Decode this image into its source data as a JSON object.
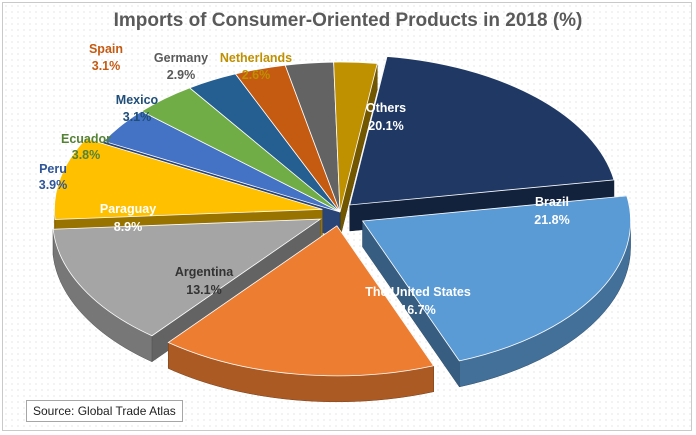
{
  "chart_data": {
    "type": "pie",
    "title": "Imports of Consumer-Oriented  Products  in 2018 (%)",
    "unit": "%",
    "slices": [
      {
        "label": "Others",
        "value": 20.1,
        "display": "20.1%",
        "color": "#1f3864",
        "label_color": "#ffffff"
      },
      {
        "label": "Brazil",
        "value": 21.8,
        "display": "21.8%",
        "color": "#5b9bd5",
        "label_color": "#ffffff"
      },
      {
        "label": "The United States",
        "value": 16.7,
        "display": "16.7%",
        "color": "#ed7d31",
        "label_color": "#ffffff"
      },
      {
        "label": "Argentina",
        "value": 13.1,
        "display": "13.1%",
        "color": "#a5a5a5",
        "label_color": "#333333"
      },
      {
        "label": "Paraguay",
        "value": 8.9,
        "display": "8.9%",
        "color": "#ffc000",
        "label_color": "#ffffff"
      },
      {
        "label": "Peru",
        "value": 3.9,
        "display": "3.9%",
        "color": "#4472c4",
        "label_color": "#2e5597"
      },
      {
        "label": "Ecuador",
        "value": 3.8,
        "display": "3.8%",
        "color": "#70ad47",
        "label_color": "#548235"
      },
      {
        "label": "Mexico",
        "value": 3.1,
        "display": "3.1%",
        "color": "#255e91",
        "label_color": "#1f4e79"
      },
      {
        "label": "Spain",
        "value": 3.1,
        "display": "3.1%",
        "color": "#c55a11",
        "label_color": "#c55a11"
      },
      {
        "label": "Germany",
        "value": 2.9,
        "display": "2.9%",
        "color": "#636363",
        "label_color": "#595959"
      },
      {
        "label": "Netherlands",
        "value": 2.6,
        "display": "2.6%",
        "color": "#bf9000",
        "label_color": "#bf9000"
      }
    ]
  },
  "source": "Source: Global Trade Atlas"
}
